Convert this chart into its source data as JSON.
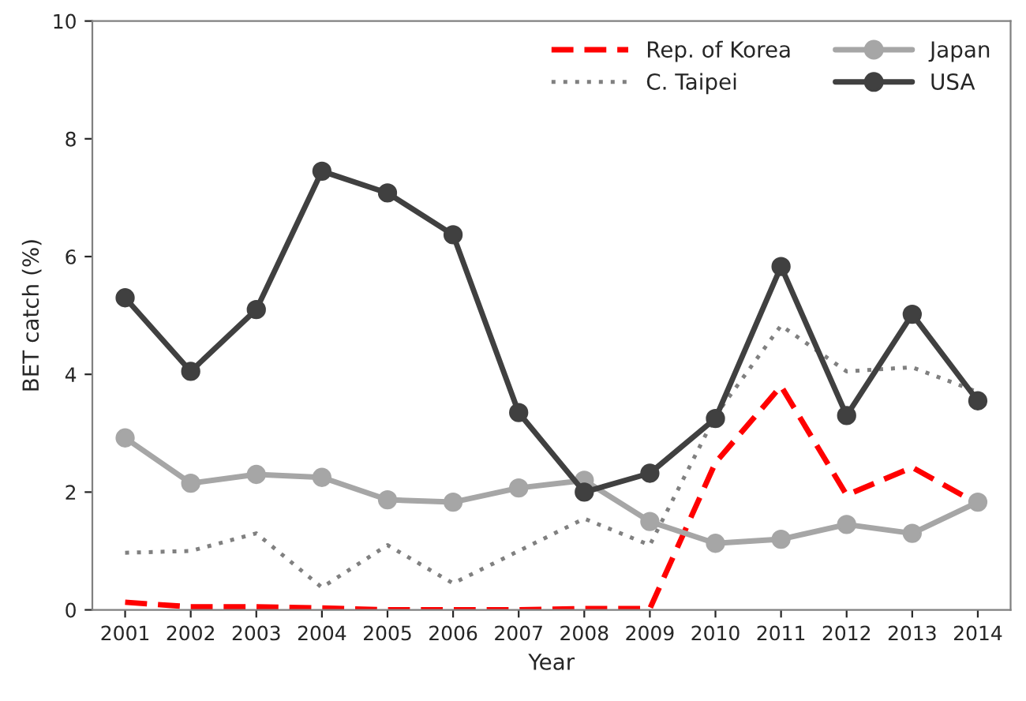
{
  "chart_data": {
    "type": "line",
    "xlabel": "Year",
    "ylabel": "BET catch (%)",
    "categories": [
      "2001",
      "2002",
      "2003",
      "2004",
      "2005",
      "2006",
      "2007",
      "2008",
      "2009",
      "2010",
      "2011",
      "2012",
      "2013",
      "2014"
    ],
    "series": [
      {
        "name": "Rep. of Korea",
        "color": "#ff0000",
        "line_style": "dashed",
        "marker": "none",
        "values": [
          0.13,
          0.05,
          0.05,
          0.03,
          0,
          0,
          0,
          0.02,
          0.02,
          2.5,
          3.8,
          1.95,
          2.42,
          1.8
        ]
      },
      {
        "name": "C. Taipei",
        "color": "#808080",
        "line_style": "dotted",
        "marker": "none",
        "values": [
          0.97,
          1.0,
          1.3,
          0.38,
          1.1,
          0.45,
          1.0,
          1.55,
          1.1,
          3.3,
          4.83,
          4.05,
          4.12,
          3.7
        ]
      },
      {
        "name": "Japan",
        "color": "#a6a6a6",
        "line_style": "solid",
        "marker": "circle",
        "values": [
          2.92,
          2.15,
          2.3,
          2.25,
          1.87,
          1.83,
          2.07,
          2.2,
          1.5,
          1.13,
          1.2,
          1.45,
          1.3,
          1.83
        ]
      },
      {
        "name": "USA",
        "color": "#404040",
        "line_style": "solid",
        "marker": "circle",
        "values": [
          5.3,
          4.05,
          5.1,
          7.45,
          7.08,
          6.37,
          3.35,
          2.0,
          2.32,
          3.25,
          5.83,
          3.3,
          5.02,
          3.55
        ]
      }
    ],
    "ylim": [
      0,
      10
    ],
    "yticks": [
      0,
      2,
      4,
      6,
      8,
      10
    ],
    "grid": false,
    "legend": "top right"
  }
}
